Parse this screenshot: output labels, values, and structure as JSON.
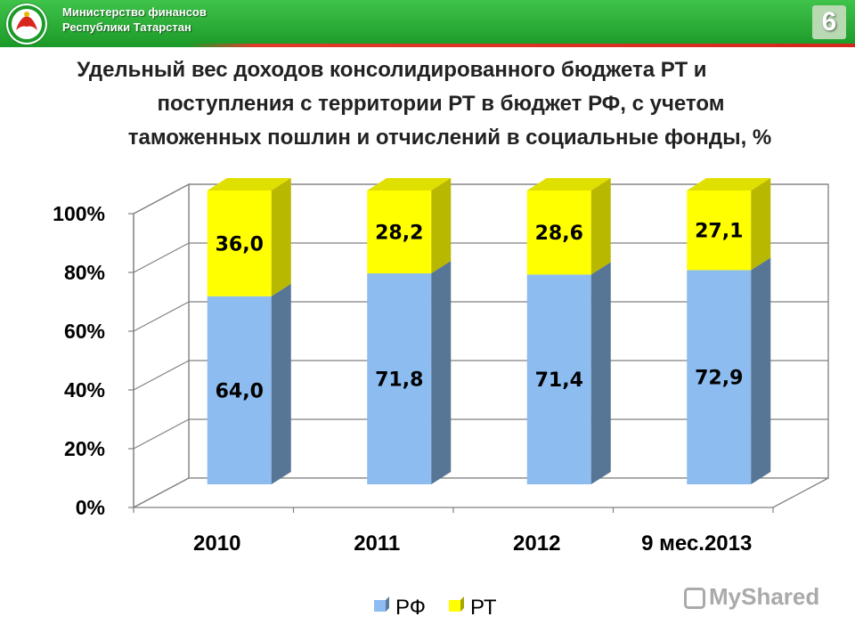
{
  "header": {
    "org_line1": "Министерство финансов",
    "org_line2": "Республики Татарстан",
    "slide_number": "6",
    "logo_icon": "tatarstan-emblem-icon"
  },
  "title_lines": [
    "Удельный вес доходов  консолидированного бюджета РТ и",
    "поступления с территории РТ в бюджет РФ, с учетом",
    "таможенных пошлин и отчислений в социальные фонды, %"
  ],
  "colors": {
    "rf": "#8cbcf0",
    "rt": "#ffff00",
    "header_green": "#2aae36",
    "header_red": "#d7261c"
  },
  "chart_data": {
    "type": "bar",
    "stacked": true,
    "three_d": true,
    "categories": [
      "2010",
      "2011",
      "2012",
      "9 мес.2013"
    ],
    "series": [
      {
        "name": "РФ",
        "values": [
          64.0,
          71.8,
          71.4,
          72.9
        ],
        "labels": [
          "64,0",
          "71,8",
          "71,4",
          "72,9"
        ]
      },
      {
        "name": "РТ",
        "values": [
          36.0,
          28.2,
          28.6,
          27.1
        ],
        "labels": [
          "36,0",
          "28,2",
          "28,6",
          "27,1"
        ]
      }
    ],
    "y_ticks": [
      "0%",
      "20%",
      "40%",
      "60%",
      "80%",
      "100%"
    ],
    "ylim": [
      0,
      100
    ],
    "grid": true,
    "legend": "bottom"
  },
  "watermark": "MyShared"
}
